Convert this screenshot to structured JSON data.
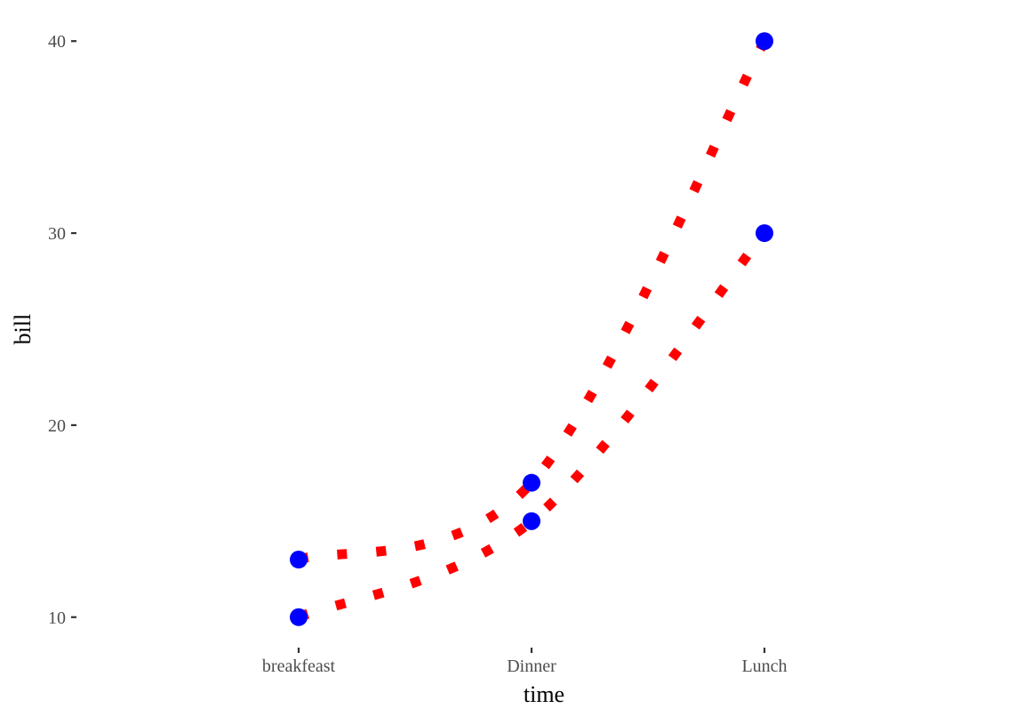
{
  "chart_data": {
    "type": "line",
    "categories": [
      "breakfeast",
      "Dinner",
      "Lunch"
    ],
    "series": [
      {
        "values": [
          13,
          17,
          40
        ]
      },
      {
        "values": [
          10,
          15,
          30
        ]
      }
    ],
    "xlabel": "time",
    "ylabel": "bill",
    "yticks": [
      10,
      20,
      30,
      40
    ],
    "ylim": [
      8.6,
      41.4
    ],
    "grid": false,
    "legend": "none",
    "line_style": "dotted",
    "colors": {
      "line": "#ff0000",
      "point": "#0000ff"
    }
  }
}
